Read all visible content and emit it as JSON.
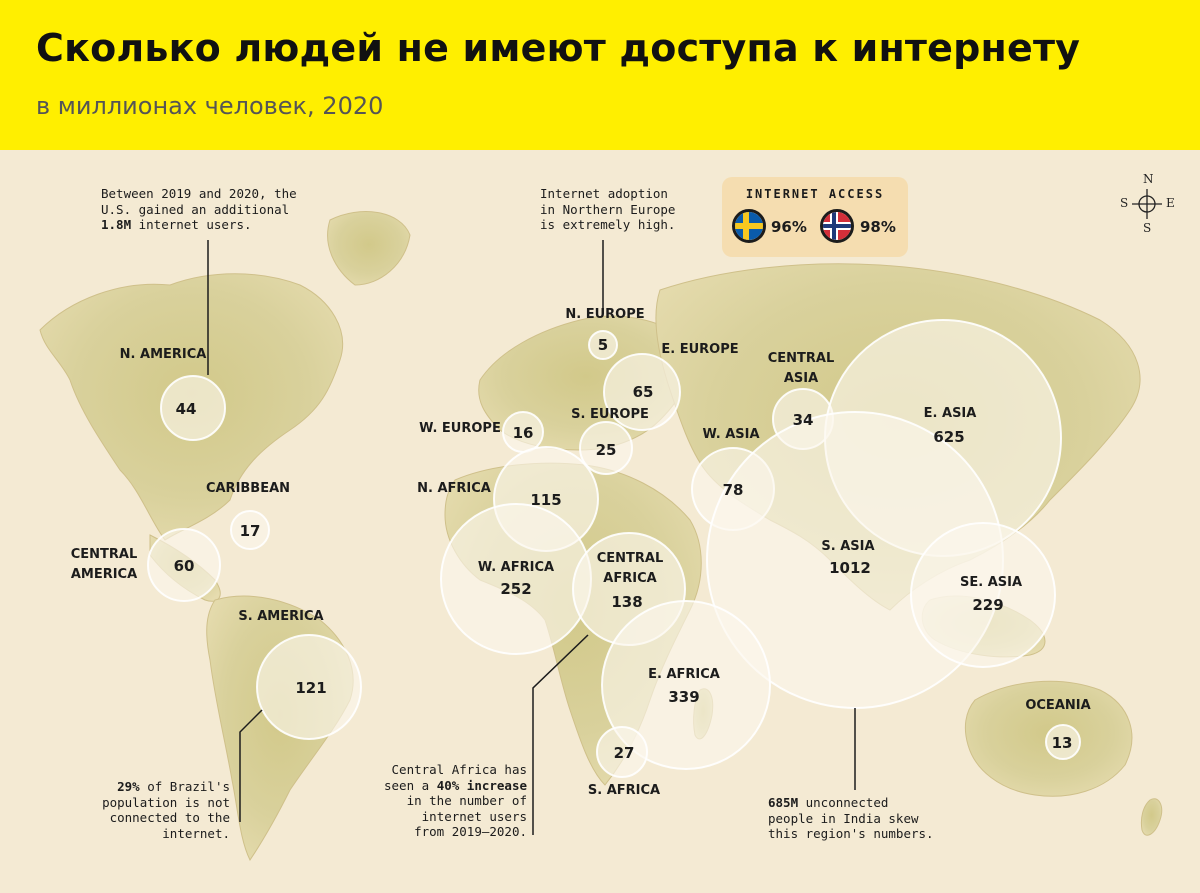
{
  "header": {
    "title": "Сколько людей не имеют доступа к интернету",
    "subtitle": "в миллионах человек, 2020"
  },
  "regions": [
    {
      "name": "N. AMERICA",
      "value": "44"
    },
    {
      "name": "CARIBBEAN",
      "value": "17"
    },
    {
      "name": "CENTRAL AMERICA",
      "value": "60"
    },
    {
      "name": "S. AMERICA",
      "value": "121"
    },
    {
      "name": "N. EUROPE",
      "value": "5"
    },
    {
      "name": "E. EUROPE",
      "value": "65"
    },
    {
      "name": "W. EUROPE",
      "value": "16"
    },
    {
      "name": "S. EUROPE",
      "value": "25"
    },
    {
      "name": "CENTRAL ASIA",
      "value": "34"
    },
    {
      "name": "E. ASIA",
      "value": "625"
    },
    {
      "name": "W. ASIA",
      "value": "78"
    },
    {
      "name": "N. AFRICA",
      "value": "115"
    },
    {
      "name": "W. AFRICA",
      "value": "252"
    },
    {
      "name": "CENTRAL AFRICA",
      "value": "138"
    },
    {
      "name": "S. ASIA",
      "value": "1012"
    },
    {
      "name": "SE. ASIA",
      "value": "229"
    },
    {
      "name": "E. AFRICA",
      "value": "339"
    },
    {
      "name": "S. AFRICA",
      "value": "27"
    },
    {
      "name": "OCEANIA",
      "value": "13"
    }
  ],
  "notes": {
    "us": {
      "pre": "Between 2019 and 2020, the\nU.S. gained an additional\n",
      "bold": "1.8M",
      "post": " internet users."
    },
    "north_europe": "Internet adoption\nin Northern Europe\nis extremely high.",
    "brazil": {
      "bold": "29%",
      "post": " of Brazil's\npopulation is not\nconnected to the\ninternet."
    },
    "central_africa": {
      "pre": "Central Africa has\nseen a ",
      "bold": "40% increase",
      "post": "\nin the number of\ninternet users\nfrom 2019–2020."
    },
    "india": {
      "bold": "685M",
      "post": " unconnected\npeople in India skew\nthis region's numbers."
    }
  },
  "legend": {
    "title": "INTERNET ACCESS",
    "items": [
      {
        "country_flag": "sweden-flag-icon",
        "value": "96%"
      },
      {
        "country_flag": "norway-flag-icon",
        "value": "98%"
      }
    ]
  },
  "compass": {
    "n": "N",
    "e": "E",
    "s": "S",
    "w": "S"
  },
  "colors": {
    "header_bg": "#ffef00",
    "map_bg": "#f4ead3",
    "land": "#dcd49a",
    "bubble": "#fbf7ee",
    "legend_bg": "#f5ddb0"
  }
}
